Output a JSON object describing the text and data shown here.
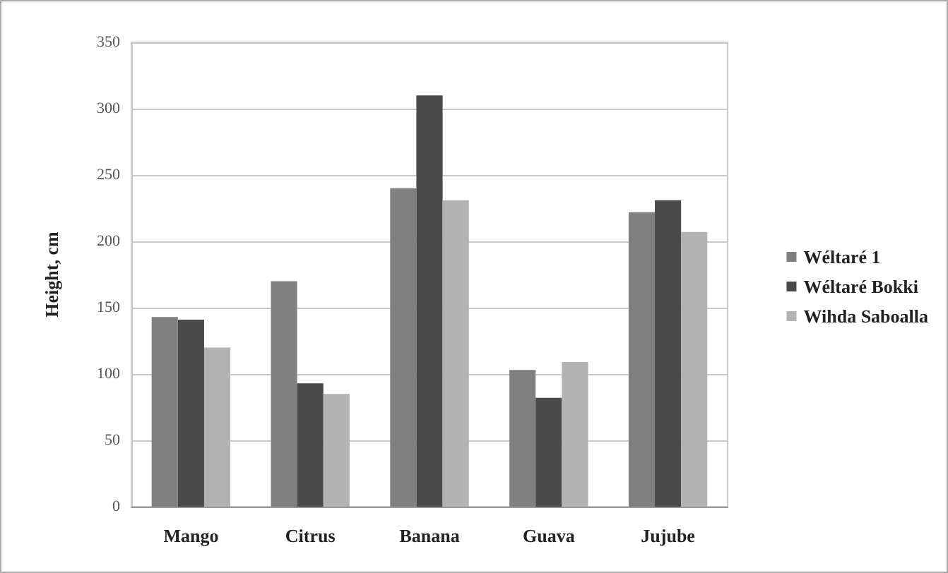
{
  "chart_data": {
    "type": "bar",
    "ylabel": "Height, cm",
    "categories": [
      "Mango",
      "Citrus",
      "Banana",
      "Guava",
      "Jujube"
    ],
    "series": [
      {
        "name": "Wéltaré 1",
        "color": "#808080",
        "values": [
          143,
          170,
          240,
          103,
          222
        ]
      },
      {
        "name": "Wéltaré Bokki",
        "color": "#4a4a4a",
        "values": [
          141,
          93,
          310,
          82,
          231
        ]
      },
      {
        "name": "Wihda Saboalla",
        "color": "#b3b3b3",
        "values": [
          120,
          85,
          231,
          109,
          207
        ]
      }
    ],
    "ylim": [
      0,
      350
    ],
    "yticks": [
      0,
      50,
      100,
      150,
      200,
      250,
      300,
      350
    ],
    "grid": "y",
    "legend": "right"
  }
}
